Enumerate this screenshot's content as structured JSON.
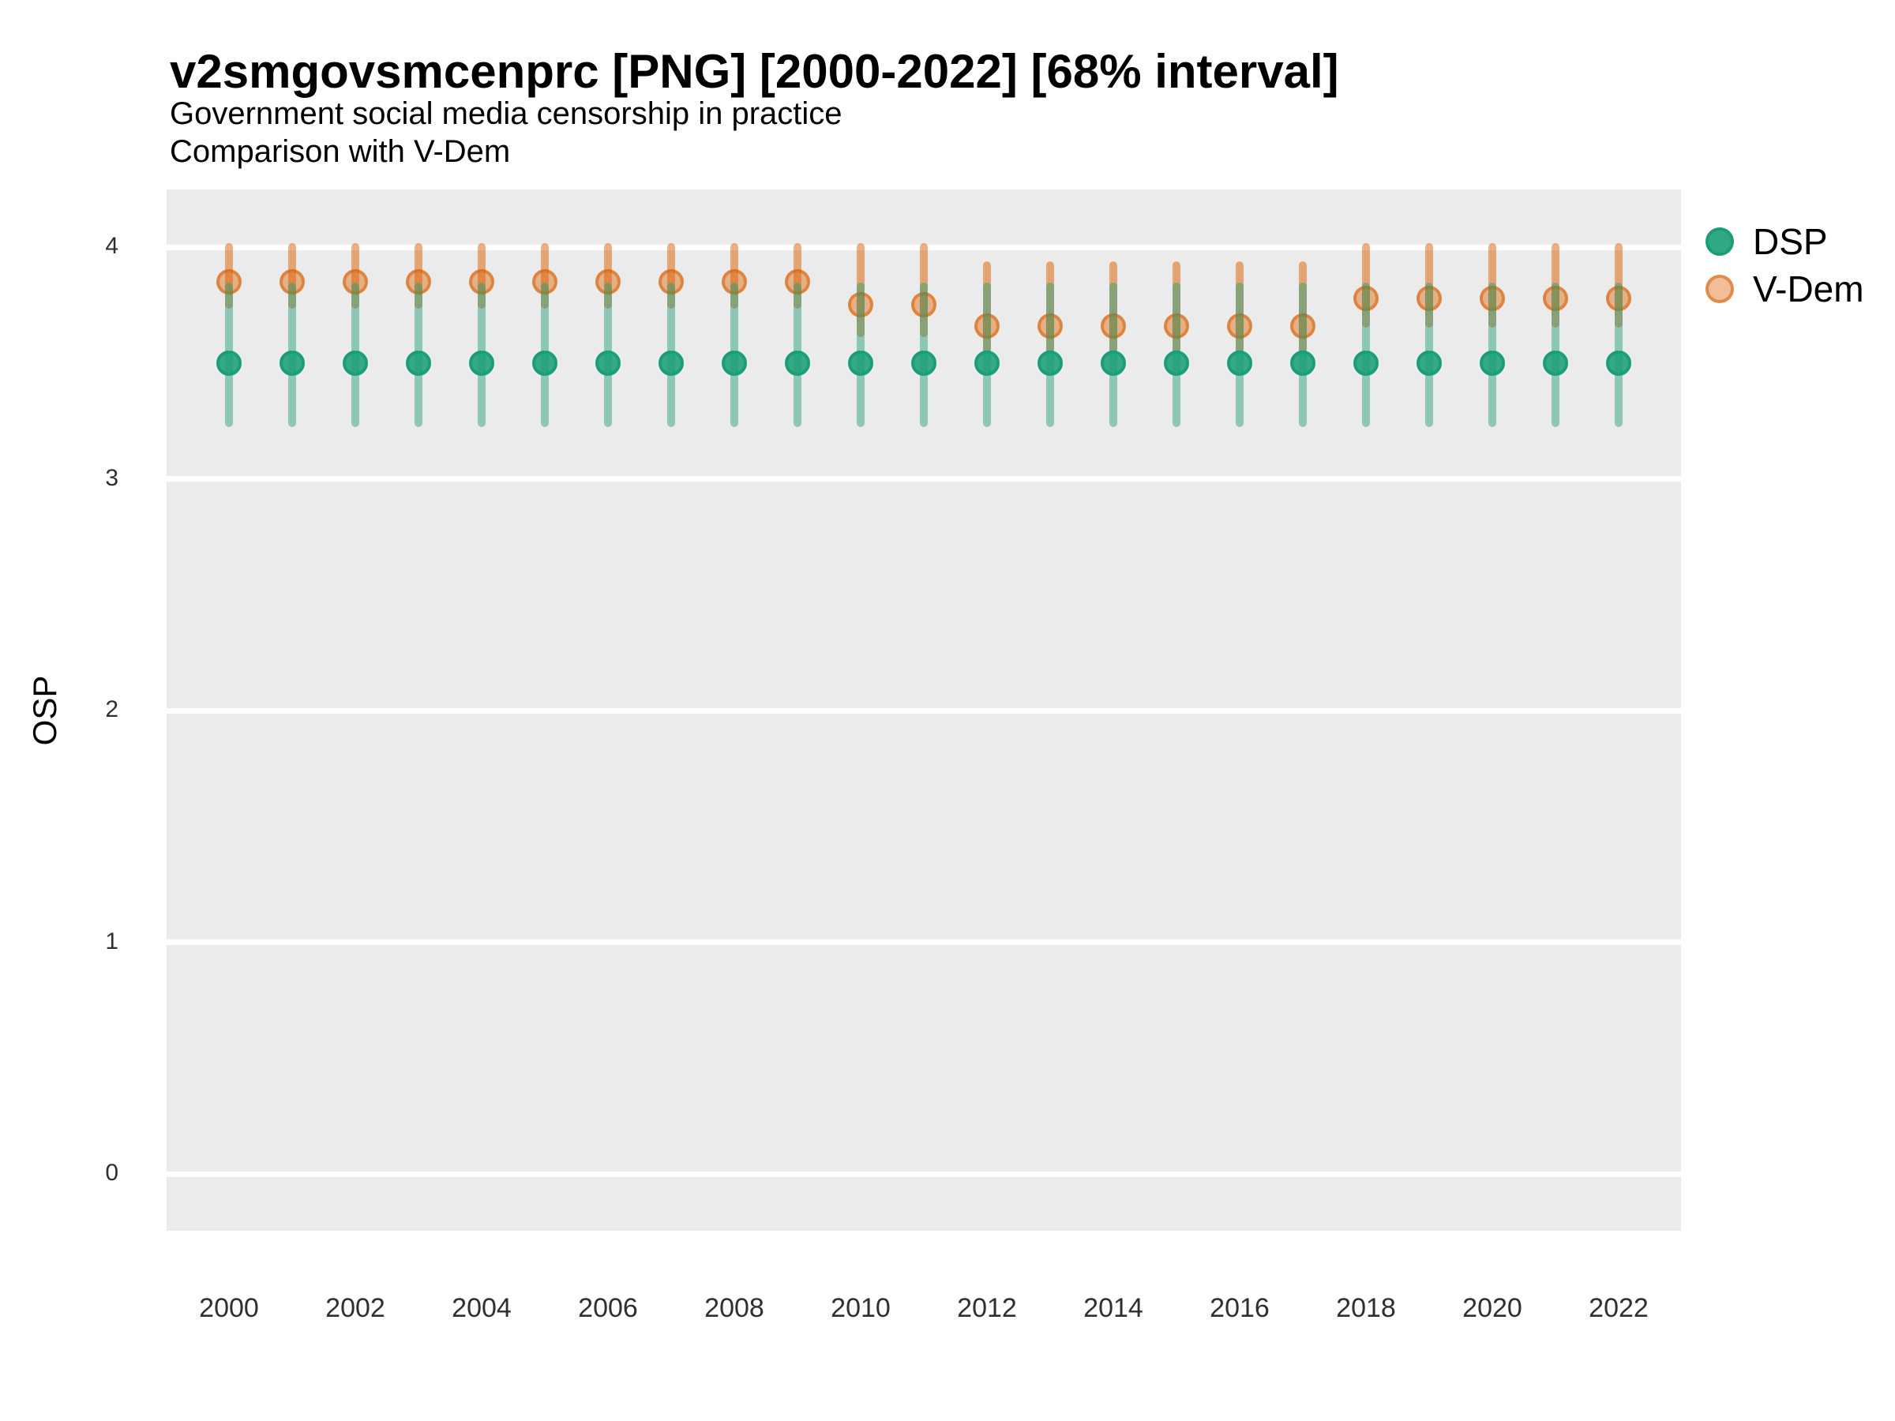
{
  "chart_data": {
    "type": "scatter",
    "title": "v2smgovsmcenprc [PNG] [2000-2022] [68% interval]",
    "subtitle": "Government social media censorship in practice",
    "subtitle2": "Comparison with V-Dem",
    "ylabel": "OSP",
    "xlabel": "",
    "interval_label": "68% interval",
    "ylim": [
      -0.25,
      4.25
    ],
    "y_ticks": [
      0,
      1,
      2,
      3,
      4
    ],
    "x_tick_years": [
      2000,
      2002,
      2004,
      2006,
      2008,
      2010,
      2012,
      2014,
      2016,
      2018,
      2020,
      2022
    ],
    "years": [
      2000,
      2001,
      2002,
      2003,
      2004,
      2005,
      2006,
      2007,
      2008,
      2009,
      2010,
      2011,
      2012,
      2013,
      2014,
      2015,
      2016,
      2017,
      2018,
      2019,
      2020,
      2021,
      2022
    ],
    "grid": "horizontal major gridlines only, white on gray panel",
    "legend_position": "right",
    "legend": [
      {
        "label": "DSP",
        "color": "#1b9e77"
      },
      {
        "label": "V-Dem",
        "color": "#d95f02"
      }
    ],
    "colors": {
      "dsp_green": "#1b9e77",
      "vdem_orange": "#d95f02",
      "panel_bg": "#ebebeb",
      "gridline": "#ffffff"
    },
    "series": [
      {
        "name": "DSP",
        "values": [
          3.5,
          3.5,
          3.5,
          3.5,
          3.5,
          3.5,
          3.5,
          3.5,
          3.5,
          3.5,
          3.5,
          3.5,
          3.5,
          3.5,
          3.5,
          3.5,
          3.5,
          3.5,
          3.5,
          3.5,
          3.5,
          3.5,
          3.5
        ],
        "lo": [
          3.24,
          3.24,
          3.24,
          3.24,
          3.24,
          3.24,
          3.24,
          3.24,
          3.24,
          3.24,
          3.24,
          3.24,
          3.24,
          3.24,
          3.24,
          3.24,
          3.24,
          3.24,
          3.24,
          3.24,
          3.24,
          3.24,
          3.24
        ],
        "hi": [
          3.83,
          3.83,
          3.83,
          3.83,
          3.83,
          3.83,
          3.83,
          3.83,
          3.83,
          3.83,
          3.83,
          3.83,
          3.83,
          3.83,
          3.83,
          3.83,
          3.83,
          3.83,
          3.83,
          3.83,
          3.83,
          3.83,
          3.83
        ]
      },
      {
        "name": "V-Dem",
        "values": [
          3.85,
          3.85,
          3.85,
          3.85,
          3.85,
          3.85,
          3.85,
          3.85,
          3.85,
          3.85,
          3.75,
          3.75,
          3.66,
          3.66,
          3.66,
          3.66,
          3.66,
          3.66,
          3.78,
          3.78,
          3.78,
          3.78,
          3.78
        ],
        "lo": [
          3.75,
          3.75,
          3.75,
          3.75,
          3.75,
          3.75,
          3.75,
          3.75,
          3.75,
          3.75,
          3.63,
          3.63,
          3.56,
          3.56,
          3.56,
          3.56,
          3.56,
          3.56,
          3.67,
          3.67,
          3.67,
          3.67,
          3.67
        ],
        "hi": [
          4.0,
          4.0,
          4.0,
          4.0,
          4.0,
          4.0,
          4.0,
          4.0,
          4.0,
          4.0,
          4.0,
          4.0,
          3.92,
          3.92,
          3.92,
          3.92,
          3.92,
          3.92,
          4.0,
          4.0,
          4.0,
          4.0,
          4.0
        ]
      }
    ]
  }
}
